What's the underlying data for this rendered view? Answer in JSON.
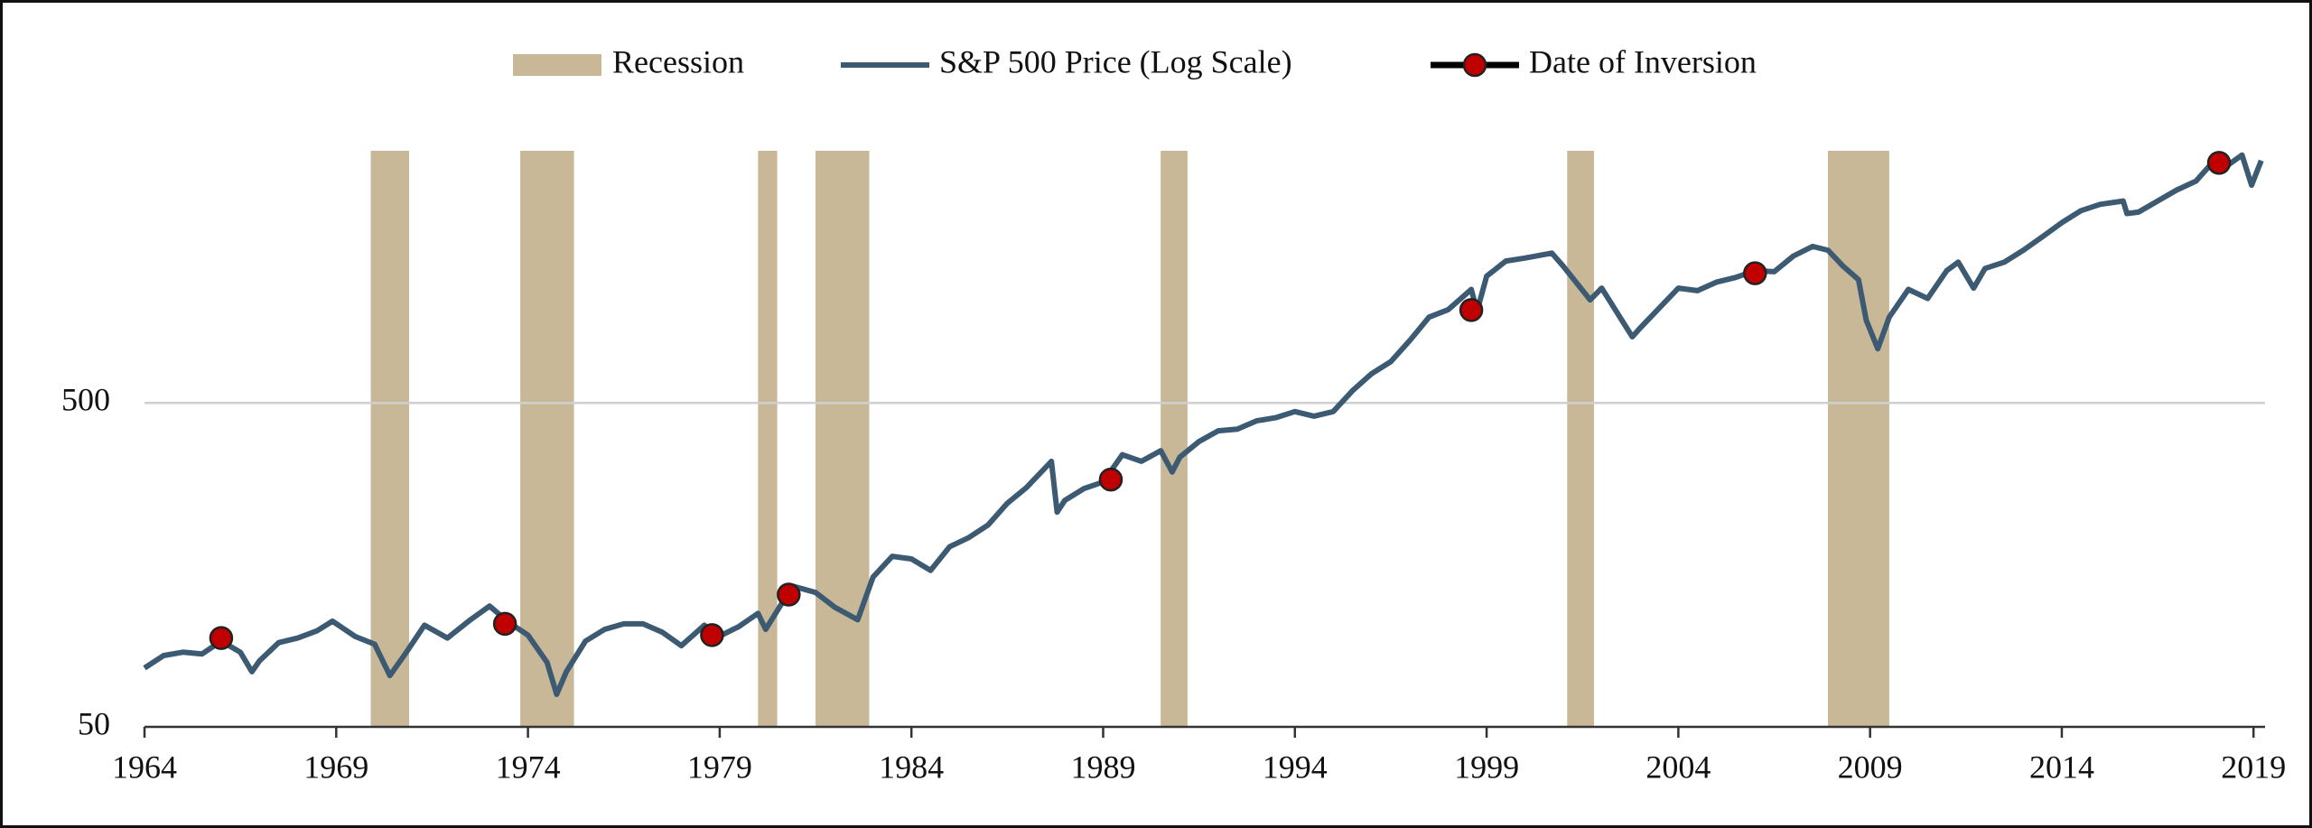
{
  "chart_data": {
    "type": "line",
    "ylog": true,
    "xlim": [
      1964,
      2019.3
    ],
    "xticks": [
      1964,
      1969,
      1974,
      1979,
      1984,
      1989,
      1994,
      1999,
      2004,
      2009,
      2014,
      2019
    ],
    "ylim": [
      50,
      3000
    ],
    "yticks": [
      50,
      500
    ],
    "grid": true,
    "recessions": {
      "name": "Recession",
      "color": "#c8b898",
      "ranges": [
        [
          1969.9,
          1970.9
        ],
        [
          1973.8,
          1975.2
        ],
        [
          1980.0,
          1980.5
        ],
        [
          1981.5,
          1982.9
        ],
        [
          1990.5,
          1991.2
        ],
        [
          2001.1,
          2001.8
        ],
        [
          2007.9,
          2009.5
        ]
      ]
    },
    "series": [
      {
        "name": "S&P 500 Price (Log Scale)",
        "color": "#3d5a73",
        "x": [
          1964.0,
          1964.5,
          1965.0,
          1965.5,
          1966.0,
          1966.5,
          1966.8,
          1967.0,
          1967.5,
          1968.0,
          1968.5,
          1968.9,
          1969.5,
          1970.0,
          1970.4,
          1970.8,
          1971.3,
          1971.9,
          1972.5,
          1973.0,
          1973.5,
          1974.0,
          1974.5,
          1974.75,
          1975.0,
          1975.5,
          1976.0,
          1976.5,
          1977.0,
          1977.5,
          1978.0,
          1978.6,
          1978.9,
          1979.5,
          1980.0,
          1980.2,
          1980.9,
          1981.5,
          1982.0,
          1982.6,
          1983.0,
          1983.5,
          1984.0,
          1984.5,
          1985.0,
          1985.5,
          1986.0,
          1986.5,
          1987.0,
          1987.65,
          1987.8,
          1988.0,
          1988.5,
          1989.0,
          1989.5,
          1990.0,
          1990.5,
          1990.8,
          1991.0,
          1991.5,
          1992.0,
          1992.5,
          1993.0,
          1993.5,
          1994.0,
          1994.5,
          1995.0,
          1995.5,
          1996.0,
          1996.5,
          1997.0,
          1997.5,
          1998.0,
          1998.6,
          1998.75,
          1999.0,
          1999.5,
          2000.0,
          2000.7,
          2001.0,
          2001.7,
          2002.0,
          2002.5,
          2002.8,
          2003.0,
          2003.5,
          2004.0,
          2004.5,
          2005.0,
          2005.5,
          2006.0,
          2006.5,
          2007.0,
          2007.5,
          2007.9,
          2008.3,
          2008.7,
          2008.9,
          2009.2,
          2009.5,
          2010.0,
          2010.5,
          2011.0,
          2011.3,
          2011.7,
          2012.0,
          2012.5,
          2013.0,
          2013.5,
          2014.0,
          2014.5,
          2015.0,
          2015.6,
          2015.7,
          2016.0,
          2016.5,
          2017.0,
          2017.5,
          2018.0,
          2018.2,
          2018.7,
          2018.95,
          2019.2
        ],
        "values": [
          76,
          83,
          85,
          84,
          92,
          85,
          74,
          80,
          91,
          94,
          99,
          106,
          95,
          90,
          72,
          84,
          103,
          94,
          107,
          118,
          105,
          96,
          79,
          63,
          74,
          92,
          100,
          104,
          104,
          98,
          89,
          103,
          94,
          102,
          112,
          100,
          136,
          130,
          117,
          107,
          145,
          168,
          165,
          152,
          180,
          192,
          210,
          245,
          274,
          330,
          230,
          250,
          272,
          285,
          346,
          330,
          356,
          306,
          340,
          380,
          410,
          415,
          440,
          450,
          470,
          455,
          470,
          545,
          615,
          670,
          780,
          920,
          970,
          1120,
          960,
          1230,
          1370,
          1400,
          1450,
          1320,
          1040,
          1130,
          910,
          800,
          850,
          980,
          1130,
          1110,
          1180,
          1220,
          1280,
          1270,
          1420,
          1520,
          1480,
          1320,
          1200,
          900,
          735,
          920,
          1120,
          1050,
          1280,
          1360,
          1130,
          1300,
          1360,
          1480,
          1630,
          1800,
          1960,
          2050,
          2100,
          1920,
          1940,
          2100,
          2270,
          2420,
          2820,
          2640,
          2910,
          2350,
          2800
        ]
      }
    ],
    "inversions": {
      "name": "Date of Inversion",
      "color": "#c00000",
      "x": [
        1966.0,
        1973.4,
        1978.8,
        1980.8,
        1989.2,
        1998.6,
        2006.0,
        2018.1
      ],
      "values": [
        94,
        104,
        96,
        128,
        290,
        967,
        1256,
        2754
      ]
    }
  }
}
